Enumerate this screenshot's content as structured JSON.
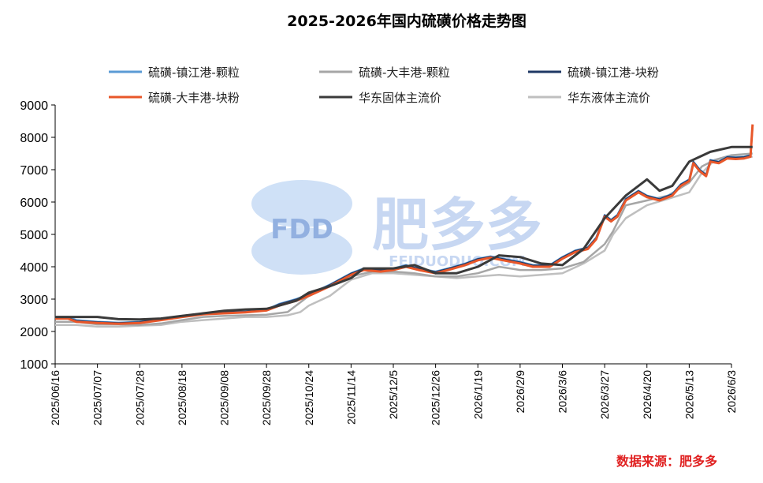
{
  "chart_data": {
    "type": "line",
    "title": "2025-2026年国内硫磺价格走势图",
    "source": "数据来源：肥多多",
    "watermark": {
      "logo": "FDD",
      "brand": "肥多多",
      "site": "FEIDUODUO.COM"
    },
    "ylim": [
      1000,
      9000
    ],
    "yticks": [
      "1000",
      "2000",
      "3000",
      "4000",
      "5000",
      "6000",
      "7000",
      "8000",
      "9000"
    ],
    "xticks": [
      "2025/06/16",
      "2025/07/07",
      "2025/07/28",
      "2025/08/18",
      "2025/09/08",
      "2025/09/28",
      "2025/10/24",
      "2025/11/14",
      "2025/12/5",
      "2025/12/26",
      "2026/1/19",
      "2026/2/9",
      "2026/3/6",
      "2026/3/27",
      "2026/4/20",
      "2026/5/13",
      "2026/6/3"
    ],
    "x_range": [
      0,
      16
    ],
    "legend_position": "top",
    "series": [
      {
        "name": "硫磺-镇江港-颗粒",
        "color": "#5b9bd5",
        "width": 2.5,
        "z": 2,
        "points": [
          [
            0,
            2450
          ],
          [
            0.3,
            2450
          ],
          [
            0.5,
            2350
          ],
          [
            1,
            2300
          ],
          [
            1.5,
            2270
          ],
          [
            2,
            2300
          ],
          [
            2.5,
            2400
          ],
          [
            3,
            2480
          ],
          [
            3.5,
            2560
          ],
          [
            4,
            2600
          ],
          [
            4.5,
            2620
          ],
          [
            5,
            2680
          ],
          [
            5.3,
            2850
          ],
          [
            5.7,
            3000
          ],
          [
            6,
            3150
          ],
          [
            6.5,
            3450
          ],
          [
            7,
            3800
          ],
          [
            7.3,
            3950
          ],
          [
            7.7,
            3900
          ],
          [
            8,
            3950
          ],
          [
            8.3,
            4050
          ],
          [
            8.6,
            3950
          ],
          [
            9,
            3850
          ],
          [
            9.3,
            3950
          ],
          [
            9.7,
            4100
          ],
          [
            10,
            4250
          ],
          [
            10.3,
            4320
          ],
          [
            10.6,
            4250
          ],
          [
            11,
            4150
          ],
          [
            11.3,
            4050
          ],
          [
            11.7,
            4050
          ],
          [
            12,
            4300
          ],
          [
            12.3,
            4500
          ],
          [
            12.6,
            4600
          ],
          [
            12.8,
            4900
          ],
          [
            13,
            5600
          ],
          [
            13.15,
            5450
          ],
          [
            13.3,
            5600
          ],
          [
            13.5,
            6100
          ],
          [
            13.8,
            6350
          ],
          [
            14,
            6200
          ],
          [
            14.3,
            6100
          ],
          [
            14.6,
            6250
          ],
          [
            14.8,
            6550
          ],
          [
            15,
            6700
          ],
          [
            15.1,
            7250
          ],
          [
            15.25,
            7000
          ],
          [
            15.4,
            6850
          ],
          [
            15.5,
            7300
          ],
          [
            15.7,
            7250
          ],
          [
            15.9,
            7400
          ],
          [
            16.1,
            7380
          ],
          [
            16.3,
            7400
          ],
          [
            16.45,
            7450
          ],
          [
            16.5,
            8350
          ]
        ]
      },
      {
        "name": "硫磺-大丰港-颗粒",
        "color": "#a6a6a6",
        "width": 2.5,
        "z": 1,
        "points": [
          [
            0,
            2300
          ],
          [
            0.5,
            2300
          ],
          [
            1,
            2220
          ],
          [
            1.5,
            2220
          ],
          [
            2,
            2200
          ],
          [
            2.5,
            2250
          ],
          [
            3,
            2350
          ],
          [
            3.5,
            2450
          ],
          [
            4,
            2480
          ],
          [
            4.5,
            2500
          ],
          [
            5,
            2520
          ],
          [
            5.5,
            2600
          ],
          [
            6,
            3100
          ],
          [
            6.5,
            3400
          ],
          [
            7,
            3700
          ],
          [
            7.5,
            3850
          ],
          [
            8,
            3850
          ],
          [
            8.5,
            3800
          ],
          [
            9,
            3700
          ],
          [
            9.5,
            3700
          ],
          [
            10,
            3800
          ],
          [
            10.5,
            4000
          ],
          [
            11,
            3900
          ],
          [
            11.5,
            3900
          ],
          [
            12,
            3950
          ],
          [
            12.5,
            4150
          ],
          [
            13,
            4700
          ],
          [
            13.2,
            5100
          ],
          [
            13.5,
            5900
          ],
          [
            14,
            6050
          ],
          [
            14.5,
            6200
          ],
          [
            15,
            6600
          ],
          [
            15.3,
            7100
          ],
          [
            15.6,
            7300
          ],
          [
            16,
            7450
          ],
          [
            16.5,
            7500
          ]
        ]
      },
      {
        "name": "硫磺-镇江港-块粉",
        "color": "#1f3864",
        "width": 2,
        "z": 3,
        "points": [
          [
            0,
            2420
          ],
          [
            0.3,
            2420
          ],
          [
            0.5,
            2330
          ],
          [
            1,
            2290
          ],
          [
            1.5,
            2260
          ],
          [
            2,
            2290
          ],
          [
            2.5,
            2390
          ],
          [
            3,
            2470
          ],
          [
            3.5,
            2550
          ],
          [
            4,
            2590
          ],
          [
            4.5,
            2610
          ],
          [
            5,
            2670
          ],
          [
            5.3,
            2840
          ],
          [
            5.7,
            2990
          ],
          [
            6,
            3140
          ],
          [
            6.5,
            3440
          ],
          [
            7,
            3790
          ],
          [
            7.3,
            3940
          ],
          [
            7.7,
            3890
          ],
          [
            8,
            3940
          ],
          [
            8.3,
            4040
          ],
          [
            8.6,
            3940
          ],
          [
            9,
            3840
          ],
          [
            9.3,
            3940
          ],
          [
            9.7,
            4090
          ],
          [
            10,
            4240
          ],
          [
            10.3,
            4310
          ],
          [
            10.6,
            4240
          ],
          [
            11,
            4140
          ],
          [
            11.3,
            4040
          ],
          [
            11.7,
            4040
          ],
          [
            12,
            4290
          ],
          [
            12.3,
            4490
          ],
          [
            12.6,
            4590
          ],
          [
            12.8,
            4890
          ],
          [
            13,
            5590
          ],
          [
            13.15,
            5440
          ],
          [
            13.3,
            5590
          ],
          [
            13.5,
            6090
          ],
          [
            13.8,
            6340
          ],
          [
            14,
            6190
          ],
          [
            14.3,
            6090
          ],
          [
            14.6,
            6240
          ],
          [
            14.8,
            6540
          ],
          [
            15,
            6690
          ],
          [
            15.1,
            7240
          ],
          [
            15.25,
            6990
          ],
          [
            15.4,
            6840
          ],
          [
            15.5,
            7290
          ],
          [
            15.7,
            7240
          ],
          [
            15.9,
            7390
          ],
          [
            16.1,
            7370
          ],
          [
            16.3,
            7390
          ],
          [
            16.45,
            7440
          ],
          [
            16.5,
            8340
          ]
        ]
      },
      {
        "name": "硫磺-大丰港-块粉",
        "color": "#e8572a",
        "width": 3,
        "z": 4,
        "points": [
          [
            0,
            2400
          ],
          [
            0.3,
            2400
          ],
          [
            0.5,
            2300
          ],
          [
            1,
            2260
          ],
          [
            1.5,
            2240
          ],
          [
            2,
            2260
          ],
          [
            2.5,
            2350
          ],
          [
            3,
            2450
          ],
          [
            3.5,
            2530
          ],
          [
            4,
            2560
          ],
          [
            4.5,
            2590
          ],
          [
            5,
            2650
          ],
          [
            5.3,
            2800
          ],
          [
            5.7,
            2950
          ],
          [
            6,
            3100
          ],
          [
            6.5,
            3400
          ],
          [
            7,
            3750
          ],
          [
            7.3,
            3900
          ],
          [
            7.7,
            3850
          ],
          [
            8,
            3900
          ],
          [
            8.3,
            4000
          ],
          [
            8.6,
            3900
          ],
          [
            9,
            3800
          ],
          [
            9.3,
            3900
          ],
          [
            9.7,
            4050
          ],
          [
            10,
            4200
          ],
          [
            10.3,
            4280
          ],
          [
            10.6,
            4200
          ],
          [
            11,
            4100
          ],
          [
            11.3,
            4000
          ],
          [
            11.7,
            4000
          ],
          [
            12,
            4250
          ],
          [
            12.3,
            4450
          ],
          [
            12.6,
            4550
          ],
          [
            12.8,
            4850
          ],
          [
            13,
            5550
          ],
          [
            13.15,
            5400
          ],
          [
            13.3,
            5550
          ],
          [
            13.5,
            6050
          ],
          [
            13.8,
            6300
          ],
          [
            14,
            6150
          ],
          [
            14.3,
            6050
          ],
          [
            14.6,
            6200
          ],
          [
            14.8,
            6500
          ],
          [
            15,
            6650
          ],
          [
            15.1,
            7200
          ],
          [
            15.25,
            6950
          ],
          [
            15.4,
            6800
          ],
          [
            15.5,
            7250
          ],
          [
            15.7,
            7200
          ],
          [
            15.9,
            7350
          ],
          [
            16.1,
            7330
          ],
          [
            16.3,
            7350
          ],
          [
            16.45,
            7400
          ],
          [
            16.5,
            8400
          ]
        ]
      },
      {
        "name": "华东固体主流价",
        "color": "#3a3a3a",
        "width": 3,
        "z": 5,
        "points": [
          [
            0,
            2450
          ],
          [
            1,
            2450
          ],
          [
            1.5,
            2380
          ],
          [
            2,
            2370
          ],
          [
            2.5,
            2400
          ],
          [
            3,
            2480
          ],
          [
            3.5,
            2560
          ],
          [
            4,
            2640
          ],
          [
            4.5,
            2680
          ],
          [
            5,
            2700
          ],
          [
            5.3,
            2800
          ],
          [
            5.7,
            2950
          ],
          [
            6,
            3200
          ],
          [
            6.5,
            3400
          ],
          [
            7,
            3650
          ],
          [
            7.3,
            3950
          ],
          [
            7.7,
            3950
          ],
          [
            8,
            3950
          ],
          [
            8.5,
            4050
          ],
          [
            9,
            3800
          ],
          [
            9.5,
            3800
          ],
          [
            10,
            4000
          ],
          [
            10.5,
            4350
          ],
          [
            11,
            4300
          ],
          [
            11.5,
            4100
          ],
          [
            12,
            4050
          ],
          [
            12.5,
            4550
          ],
          [
            13,
            5500
          ],
          [
            13.5,
            6200
          ],
          [
            14,
            6700
          ],
          [
            14.3,
            6350
          ],
          [
            14.6,
            6500
          ],
          [
            15,
            7250
          ],
          [
            15.5,
            7550
          ],
          [
            16,
            7700
          ],
          [
            16.5,
            7700
          ]
        ]
      },
      {
        "name": "华东液体主流价",
        "color": "#bfbfbf",
        "width": 2.5,
        "z": 0,
        "points": [
          [
            0,
            2200
          ],
          [
            0.5,
            2200
          ],
          [
            1,
            2150
          ],
          [
            1.5,
            2150
          ],
          [
            2,
            2180
          ],
          [
            2.5,
            2200
          ],
          [
            3,
            2300
          ],
          [
            3.5,
            2350
          ],
          [
            4,
            2400
          ],
          [
            4.5,
            2450
          ],
          [
            5,
            2450
          ],
          [
            5.5,
            2500
          ],
          [
            5.8,
            2600
          ],
          [
            6,
            2800
          ],
          [
            6.5,
            3100
          ],
          [
            7,
            3600
          ],
          [
            7.5,
            3800
          ],
          [
            8,
            3800
          ],
          [
            8.5,
            3750
          ],
          [
            9,
            3700
          ],
          [
            9.5,
            3650
          ],
          [
            10,
            3700
          ],
          [
            10.5,
            3750
          ],
          [
            11,
            3700
          ],
          [
            11.5,
            3750
          ],
          [
            12,
            3800
          ],
          [
            12.5,
            4100
          ],
          [
            13,
            4500
          ],
          [
            13.2,
            5000
          ],
          [
            13.5,
            5500
          ],
          [
            14,
            5900
          ],
          [
            14.5,
            6100
          ],
          [
            15,
            6300
          ],
          [
            15.3,
            6900
          ],
          [
            15.6,
            7300
          ],
          [
            16,
            7400
          ],
          [
            16.5,
            7400
          ]
        ]
      }
    ]
  }
}
